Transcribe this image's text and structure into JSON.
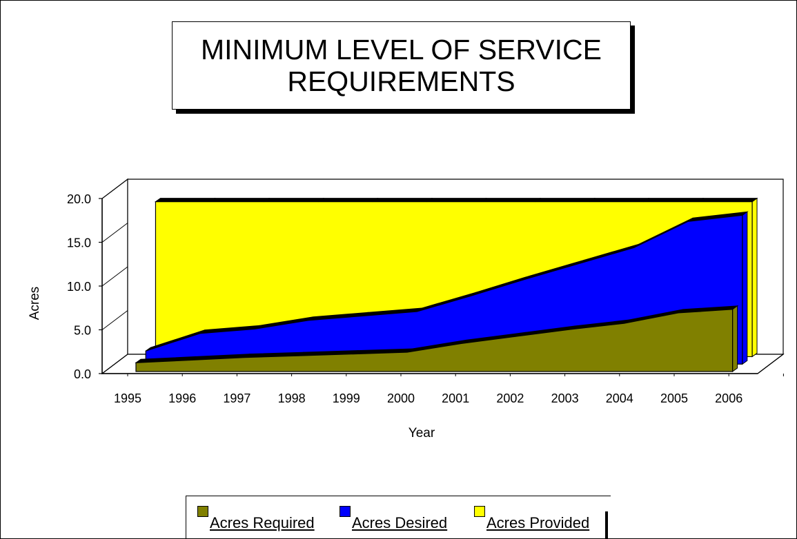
{
  "title_lines": [
    "MINIMUM LEVEL OF SERVICE",
    "REQUIREMENTS"
  ],
  "colors": {
    "required": "#808000",
    "desired": "#0000FF",
    "provided": "#FFFF00",
    "outline": "#000000",
    "background": "#FFFFFF"
  },
  "legend": {
    "required": "Acres Required",
    "desired": "Acres Desired",
    "provided": "Acres Provided"
  },
  "chart_data": {
    "type": "area",
    "title": "MINIMUM LEVEL OF SERVICE REQUIREMENTS",
    "xlabel": "Year",
    "ylabel": "Acres",
    "categories": [
      "1995",
      "1996",
      "1997",
      "1998",
      "1999",
      "2000",
      "2001",
      "2002",
      "2003",
      "2004",
      "2005",
      "2006"
    ],
    "y_ticks": [
      "0.0",
      "5.0",
      "10.0",
      "15.0",
      "20.0"
    ],
    "ylim": [
      0,
      20
    ],
    "three_d": true,
    "legend_position": "bottom",
    "series": [
      {
        "name": "Acres Required",
        "color": "#808000",
        "values": [
          1.0,
          1.3,
          1.6,
          1.8,
          2.0,
          2.2,
          3.2,
          4.0,
          4.8,
          5.5,
          6.7,
          7.1
        ]
      },
      {
        "name": "Acres Desired",
        "color": "#0000FF",
        "values": [
          1.5,
          3.5,
          4.0,
          5.0,
          5.5,
          6.0,
          7.8,
          9.7,
          11.5,
          13.3,
          16.3,
          17.0
        ]
      },
      {
        "name": "Acres Provided",
        "color": "#FFFF00",
        "values": [
          17.7,
          17.7,
          17.7,
          17.7,
          17.7,
          17.7,
          17.7,
          17.7,
          17.7,
          17.7,
          17.7,
          17.7
        ]
      }
    ]
  }
}
